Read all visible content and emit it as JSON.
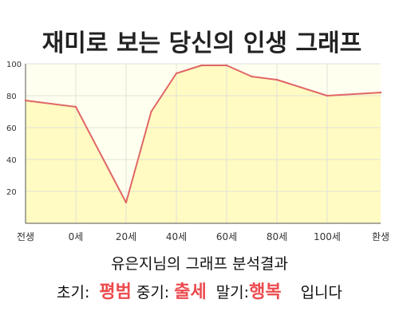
{
  "chart_data": {
    "type": "area",
    "title": "재미로 보는 당신의 인생 그래프",
    "x_labels": [
      "전생",
      "0세",
      "20세",
      "40세",
      "60세",
      "80세",
      "100세",
      "환생"
    ],
    "y_ticks": [
      20,
      40,
      60,
      80,
      100
    ],
    "ylim": [
      0,
      100
    ],
    "points": [
      {
        "x": "전생",
        "y": 77
      },
      {
        "x": "0세",
        "y": 73
      },
      {
        "x": "20세",
        "y": 13
      },
      {
        "x": "30세",
        "y": 70
      },
      {
        "x": "40세",
        "y": 94
      },
      {
        "x": "50세",
        "y": 99
      },
      {
        "x": "60세",
        "y": 99
      },
      {
        "x": "70세",
        "y": 92
      },
      {
        "x": "80세",
        "y": 90
      },
      {
        "x": "100세",
        "y": 80
      },
      {
        "x": "환생",
        "y": 82
      }
    ],
    "line_color": "#e06666",
    "fill_color": "#fffbc2",
    "grid": true
  },
  "result": {
    "title": "유은지님의 그래프 분석결과",
    "early_label": "초기:",
    "early_value": "평범",
    "mid_label": "중기:",
    "mid_value": "출세",
    "late_label": "말기:",
    "late_value": "행복",
    "suffix": "입니다"
  }
}
